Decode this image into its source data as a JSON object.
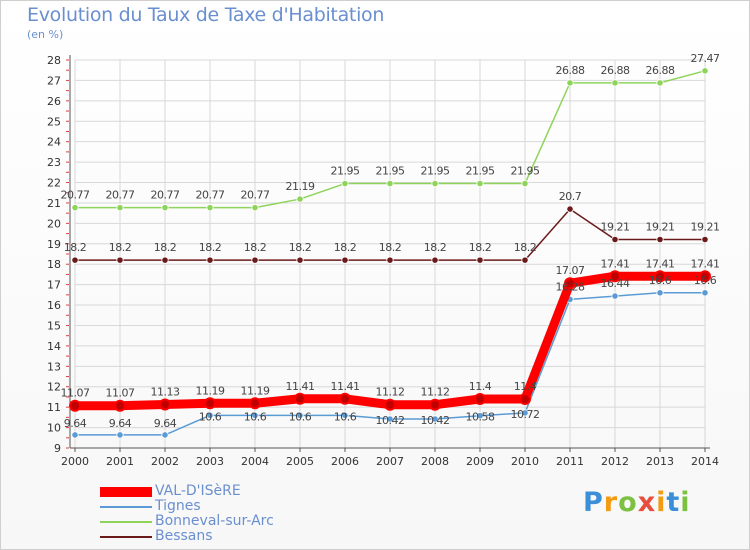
{
  "colors": {
    "val_disere": "#ff0000",
    "tignes": "#5b9bd5",
    "bonneval": "#8fd45a",
    "bessans": "#6b1a1a",
    "grid": "#d8d8d8",
    "axis_text": "#333333",
    "title": "#6a8fcf"
  },
  "chart_data": {
    "type": "line",
    "title": "Evolution du Taux de Taxe d'Habitation",
    "subtitle": "(en %)",
    "xlabel": "",
    "ylabel": "",
    "categories": [
      "2000",
      "2001",
      "2002",
      "2003",
      "2004",
      "2005",
      "2006",
      "2007",
      "2008",
      "2009",
      "2010",
      "2011",
      "2012",
      "2013",
      "2014"
    ],
    "ylim": [
      9,
      28
    ],
    "yticks": [
      "9",
      "10",
      "11",
      "12",
      "13",
      "14",
      "15",
      "16",
      "17",
      "18",
      "19",
      "20",
      "21",
      "22",
      "23",
      "24",
      "25",
      "26",
      "27",
      "28"
    ],
    "grid": true,
    "legend_position": "bottom-left",
    "series": [
      {
        "name": "Bonneval-sur-Arc",
        "color_key": "bonneval",
        "values": [
          20.77,
          20.77,
          20.77,
          20.77,
          20.77,
          21.19,
          21.95,
          21.95,
          21.95,
          21.95,
          21.95,
          26.88,
          26.88,
          26.88,
          27.47
        ],
        "labels": [
          "20.77",
          "20.77",
          "20.77",
          "20.77",
          "20.77",
          "21.19",
          "21.95",
          "21.95",
          "21.95",
          "21.95",
          "21.95",
          "26.88",
          "26.88",
          "26.88",
          "27.47"
        ]
      },
      {
        "name": "Bessans",
        "color_key": "bessans",
        "values": [
          18.2,
          18.2,
          18.2,
          18.2,
          18.2,
          18.2,
          18.2,
          18.2,
          18.2,
          18.2,
          18.2,
          20.7,
          19.21,
          19.21,
          19.21
        ],
        "labels": [
          "18.2",
          "18.2",
          "18.2",
          "18.2",
          "18.2",
          "18.2",
          "18.2",
          "18.2",
          "18.2",
          "18.2",
          "18.2",
          "20.7",
          "19.21",
          "19.21",
          "19.21"
        ]
      },
      {
        "name": "Tignes",
        "color_key": "tignes",
        "values": [
          9.64,
          9.64,
          9.64,
          10.6,
          10.6,
          10.6,
          10.6,
          10.42,
          10.42,
          10.58,
          10.72,
          16.28,
          16.44,
          16.6,
          16.6
        ],
        "labels": [
          "9.64",
          "9.64",
          "9.64",
          "10.6",
          "10.6",
          "10.6",
          "10.6",
          "10.42",
          "10.42",
          "10.58",
          "10.72",
          "16.28",
          "16.44",
          "16.6",
          "16.6"
        ]
      },
      {
        "name": "VAL-D'ISèRE",
        "color_key": "val_disere",
        "values": [
          11.07,
          11.07,
          11.13,
          11.19,
          11.19,
          11.41,
          11.41,
          11.12,
          11.12,
          11.4,
          11.4,
          17.07,
          17.41,
          17.41,
          17.41
        ],
        "labels": [
          "11.07",
          "11.07",
          "11.13",
          "11.19",
          "11.19",
          "11.41",
          "11.41",
          "11.12",
          "11.12",
          "11.4",
          "11.4",
          "17.07",
          "17.41",
          "17.41",
          "17.41"
        ]
      }
    ]
  },
  "legend": {
    "items": [
      {
        "label": "VAL-D'ISèRE",
        "color_key": "val_disere"
      },
      {
        "label": "Tignes",
        "color_key": "tignes"
      },
      {
        "label": "Bonneval-sur-Arc",
        "color_key": "bonneval"
      },
      {
        "label": "Bessans",
        "color_key": "bessans"
      }
    ]
  },
  "brand": {
    "letters": [
      "P",
      "r",
      "o",
      "x",
      "i",
      "t",
      "i"
    ],
    "colors": [
      "#3a8fd8",
      "#f39c12",
      "#7dc142",
      "#e74c3c",
      "#f39c12",
      "#3a8fd8",
      "#7dc142"
    ]
  }
}
